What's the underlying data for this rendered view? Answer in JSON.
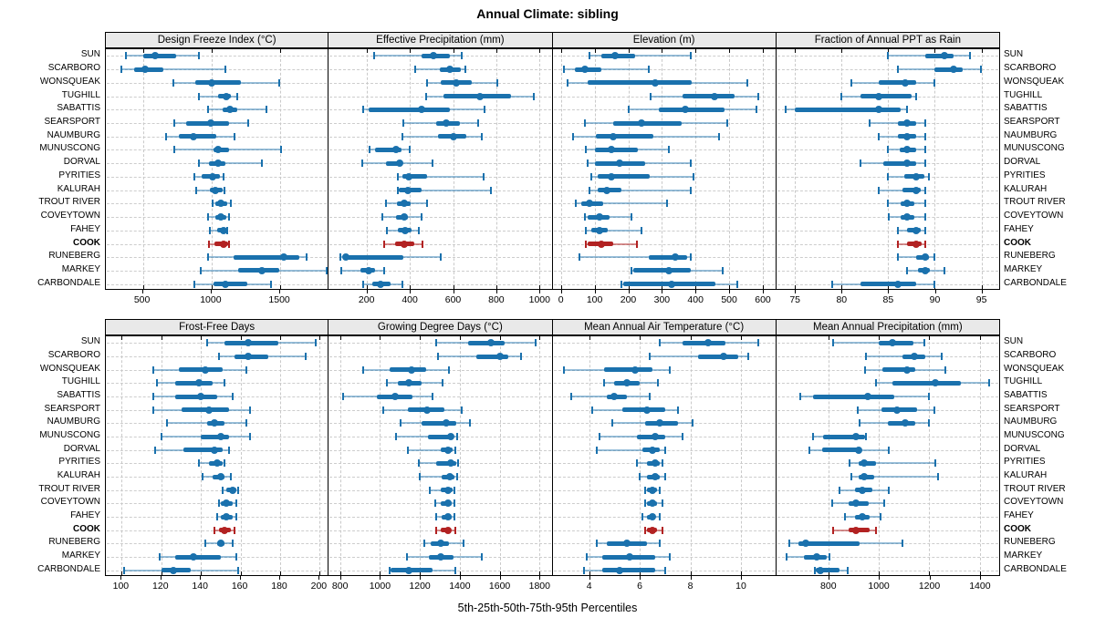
{
  "title": "Annual Climate: sibling",
  "footer": "5th-25th-50th-75th-95th Percentiles",
  "colors": {
    "blue": "#1a71ad",
    "blue_faint": "rgba(26,113,173,0.45)",
    "red": "#b22222",
    "red_faint": "rgba(178,34,34,0.5)",
    "strip_bg": "#e9e9e9",
    "grid": "#cdcdcd",
    "border": "#000000"
  },
  "chart_data": {
    "type": "dot-whisker-trellis",
    "percentiles": [
      5,
      25,
      50,
      75,
      95
    ],
    "legend_note": "5th-25th-50th-75th-95th Percentiles",
    "highlight_station": "COOK",
    "stations": [
      "SUN",
      "SCARBORO",
      "WONSQUEAK",
      "TUGHILL",
      "SABATTIS",
      "SEARSPORT",
      "NAUMBURG",
      "MUNUSCONG",
      "DORVAL",
      "PYRITIES",
      "KALURAH",
      "TROUT RIVER",
      "COVEYTOWN",
      "FAHEY",
      "COOK",
      "RUNEBERG",
      "MARKEY",
      "CARBONDALE"
    ],
    "panels": [
      {
        "label": "Design Freeze Index (°C)",
        "ticks": [
          500,
          1000,
          1500
        ],
        "range": [
          230,
          1860
        ],
        "values": [
          [
            375,
            500,
            590,
            745,
            910
          ],
          [
            340,
            435,
            515,
            650,
            1100
          ],
          [
            720,
            880,
            1000,
            1215,
            1490
          ],
          [
            905,
            1045,
            1105,
            1140,
            1185
          ],
          [
            975,
            1080,
            1135,
            1185,
            1400
          ],
          [
            725,
            815,
            995,
            1125,
            1265
          ],
          [
            665,
            760,
            865,
            1035,
            1165
          ],
          [
            725,
            1015,
            1045,
            1125,
            1505
          ],
          [
            905,
            980,
            1045,
            1100,
            1365
          ],
          [
            875,
            925,
            1005,
            1060,
            1085
          ],
          [
            885,
            985,
            1030,
            1080,
            1095
          ],
          [
            1005,
            1030,
            1070,
            1115,
            1140
          ],
          [
            975,
            1030,
            1065,
            1105,
            1125
          ],
          [
            985,
            1040,
            1085,
            1105,
            1115
          ],
          [
            980,
            1020,
            1090,
            1120,
            1130
          ],
          [
            975,
            1160,
            1525,
            1640,
            1695
          ],
          [
            920,
            1195,
            1365,
            1490,
            1835
          ],
          [
            875,
            1015,
            1100,
            1260,
            1435
          ]
        ]
      },
      {
        "label": "Effective Precipitation (mm)",
        "ticks": [
          200,
          400,
          600,
          800,
          1000
        ],
        "range": [
          25,
          1060
        ],
        "values": [
          [
            235,
            455,
            510,
            585,
            640
          ],
          [
            425,
            540,
            585,
            635,
            655
          ],
          [
            480,
            545,
            615,
            685,
            805
          ],
          [
            475,
            555,
            725,
            870,
            975
          ],
          [
            185,
            210,
            455,
            585,
            745
          ],
          [
            370,
            520,
            570,
            630,
            715
          ],
          [
            365,
            530,
            600,
            660,
            735
          ],
          [
            215,
            240,
            335,
            360,
            400
          ],
          [
            180,
            290,
            355,
            365,
            505
          ],
          [
            345,
            365,
            395,
            480,
            740
          ],
          [
            345,
            350,
            390,
            455,
            775
          ],
          [
            290,
            340,
            375,
            405,
            480
          ],
          [
            275,
            335,
            375,
            390,
            455
          ],
          [
            295,
            345,
            380,
            410,
            440
          ],
          [
            280,
            330,
            375,
            420,
            460
          ],
          [
            80,
            95,
            105,
            370,
            545
          ],
          [
            85,
            170,
            210,
            240,
            280
          ],
          [
            185,
            225,
            265,
            310,
            365
          ]
        ]
      },
      {
        "label": "Elevation (m)",
        "ticks": [
          0,
          100,
          200,
          300,
          400,
          500,
          600
        ],
        "range": [
          -25,
          640
        ],
        "values": [
          [
            85,
            120,
            160,
            220,
            385
          ],
          [
            10,
            40,
            70,
            120,
            260
          ],
          [
            20,
            80,
            280,
            390,
            555
          ],
          [
            265,
            360,
            455,
            515,
            585
          ],
          [
            200,
            290,
            370,
            485,
            580
          ],
          [
            70,
            155,
            240,
            360,
            495
          ],
          [
            35,
            105,
            155,
            275,
            470
          ],
          [
            75,
            100,
            150,
            230,
            320
          ],
          [
            80,
            100,
            175,
            250,
            385
          ],
          [
            90,
            110,
            150,
            265,
            395
          ],
          [
            85,
            110,
            135,
            180,
            385
          ],
          [
            45,
            60,
            85,
            125,
            315
          ],
          [
            70,
            80,
            115,
            145,
            210
          ],
          [
            75,
            90,
            115,
            140,
            240
          ],
          [
            75,
            80,
            120,
            155,
            225
          ],
          [
            55,
            260,
            340,
            375,
            385
          ],
          [
            210,
            215,
            320,
            385,
            480
          ],
          [
            180,
            185,
            330,
            460,
            525
          ]
        ]
      },
      {
        "label": "Fraction of Annual PPT as Rain",
        "ticks": [
          75,
          80,
          85,
          90,
          95
        ],
        "range": [
          73,
          97
        ],
        "values": [
          [
            85,
            89,
            91,
            92,
            93.8
          ],
          [
            86,
            90,
            92,
            93,
            94.9
          ],
          [
            81,
            84,
            86.8,
            88,
            90
          ],
          [
            80,
            82,
            84,
            87.5,
            88
          ],
          [
            74,
            75,
            84,
            86.3,
            87
          ],
          [
            83,
            86,
            87,
            88,
            89
          ],
          [
            84,
            86,
            87,
            88,
            89
          ],
          [
            85,
            86.2,
            87,
            88,
            89
          ],
          [
            82,
            84.5,
            87,
            88,
            89
          ],
          [
            85,
            86.7,
            88,
            88.9,
            89.4
          ],
          [
            84,
            86.5,
            88,
            88.5,
            89
          ],
          [
            85,
            86.3,
            87,
            87.8,
            89
          ],
          [
            85.1,
            86.3,
            87,
            87.8,
            89
          ],
          [
            86,
            87,
            88,
            88.5,
            89
          ],
          [
            86,
            87,
            88,
            88.6,
            89
          ],
          [
            86,
            88,
            89,
            89.4,
            90
          ],
          [
            87,
            88.2,
            89,
            89.5,
            91
          ],
          [
            79,
            82,
            86,
            88,
            90
          ]
        ]
      },
      {
        "label": "Frost-Free Days",
        "ticks": [
          100,
          120,
          140,
          160,
          180,
          200
        ],
        "range": [
          92,
          205
        ],
        "values": [
          [
            143,
            152,
            164,
            179,
            198
          ],
          [
            149,
            157,
            164,
            174,
            193
          ],
          [
            116,
            129,
            142,
            151,
            163
          ],
          [
            118,
            127,
            139,
            146,
            152
          ],
          [
            116,
            127,
            140,
            148,
            156
          ],
          [
            116,
            130,
            144,
            154,
            165
          ],
          [
            123,
            143,
            147,
            152,
            163
          ],
          [
            120,
            140,
            150,
            154,
            165
          ],
          [
            117,
            131,
            147,
            151,
            154
          ],
          [
            139,
            144,
            148,
            151,
            152
          ],
          [
            141,
            146,
            150,
            152,
            155
          ],
          [
            151,
            153,
            156,
            158,
            159
          ],
          [
            149,
            150,
            153,
            156,
            158
          ],
          [
            148,
            150,
            153,
            156,
            158
          ],
          [
            147,
            149,
            152,
            155,
            157
          ],
          [
            142,
            148,
            150,
            152,
            156
          ],
          [
            119,
            127,
            136,
            150,
            158
          ],
          [
            101,
            120,
            126,
            135,
            159
          ]
        ]
      },
      {
        "label": "Growing Degree Days (°C)",
        "ticks": [
          800,
          1000,
          1200,
          1400,
          1600,
          1800
        ],
        "range": [
          743,
          1865
        ],
        "values": [
          [
            1280,
            1440,
            1555,
            1625,
            1780
          ],
          [
            1290,
            1485,
            1600,
            1645,
            1705
          ],
          [
            915,
            1050,
            1160,
            1230,
            1345
          ],
          [
            1035,
            1090,
            1145,
            1210,
            1315
          ],
          [
            815,
            985,
            1075,
            1165,
            1265
          ],
          [
            1015,
            1140,
            1235,
            1325,
            1410
          ],
          [
            1105,
            1210,
            1330,
            1380,
            1450
          ],
          [
            1080,
            1240,
            1355,
            1370,
            1385
          ],
          [
            1140,
            1305,
            1340,
            1365,
            1380
          ],
          [
            1195,
            1280,
            1355,
            1380,
            1390
          ],
          [
            1200,
            1310,
            1350,
            1375,
            1385
          ],
          [
            1250,
            1305,
            1340,
            1365,
            1375
          ],
          [
            1275,
            1305,
            1340,
            1360,
            1375
          ],
          [
            1280,
            1310,
            1340,
            1360,
            1375
          ],
          [
            1280,
            1305,
            1340,
            1355,
            1380
          ],
          [
            1220,
            1255,
            1305,
            1345,
            1420
          ],
          [
            1135,
            1245,
            1305,
            1370,
            1510
          ],
          [
            1050,
            1055,
            1145,
            1265,
            1380
          ]
        ]
      },
      {
        "label": "Mean Annual Air Temperature (°C)",
        "ticks": [
          4,
          6,
          8,
          10
        ],
        "range": [
          2.55,
          11.4
        ],
        "values": [
          [
            6.8,
            7.7,
            8.7,
            9.4,
            10.7
          ],
          [
            6.4,
            8.3,
            9.3,
            9.9,
            10.3
          ],
          [
            3.0,
            4.6,
            5.8,
            6.5,
            7.2
          ],
          [
            4.6,
            5.0,
            5.5,
            6.0,
            6.7
          ],
          [
            3.3,
            4.7,
            5.0,
            5.5,
            6.4
          ],
          [
            4.1,
            5.3,
            6.3,
            7.0,
            7.5
          ],
          [
            4.9,
            6.2,
            6.8,
            7.5,
            8.1
          ],
          [
            4.4,
            5.9,
            6.6,
            7.0,
            7.7
          ],
          [
            4.3,
            6.1,
            6.5,
            6.8,
            7.0
          ],
          [
            5.9,
            6.3,
            6.6,
            6.8,
            6.9
          ],
          [
            6.0,
            6.3,
            6.6,
            6.8,
            7.0
          ],
          [
            6.2,
            6.3,
            6.5,
            6.7,
            6.8
          ],
          [
            6.2,
            6.3,
            6.5,
            6.7,
            6.9
          ],
          [
            6.1,
            6.3,
            6.5,
            6.6,
            6.8
          ],
          [
            6.2,
            6.3,
            6.5,
            6.7,
            6.9
          ],
          [
            4.3,
            4.7,
            5.5,
            6.3,
            6.8
          ],
          [
            3.9,
            4.5,
            5.6,
            6.6,
            7.2
          ],
          [
            3.8,
            4.5,
            5.2,
            6.6,
            7.0
          ]
        ]
      },
      {
        "label": "Mean Annual Precipitation (mm)",
        "ticks": [
          600,
          800,
          1000,
          1200,
          1400
        ],
        "range": [
          594,
          1480
        ],
        "values": [
          [
            820,
            1000,
            1055,
            1135,
            1180
          ],
          [
            950,
            1095,
            1140,
            1185,
            1250
          ],
          [
            945,
            1015,
            1110,
            1145,
            1265
          ],
          [
            990,
            1055,
            1225,
            1325,
            1435
          ],
          [
            690,
            740,
            955,
            1060,
            1200
          ],
          [
            915,
            1010,
            1070,
            1150,
            1220
          ],
          [
            925,
            1035,
            1105,
            1145,
            1200
          ],
          [
            740,
            780,
            910,
            945,
            950
          ],
          [
            725,
            775,
            920,
            930,
            1040
          ],
          [
            885,
            920,
            940,
            990,
            1225
          ],
          [
            890,
            920,
            940,
            980,
            1235
          ],
          [
            845,
            905,
            935,
            975,
            1040
          ],
          [
            815,
            880,
            910,
            960,
            1020
          ],
          [
            865,
            905,
            935,
            965,
            1005
          ],
          [
            820,
            880,
            910,
            965,
            990
          ],
          [
            645,
            680,
            710,
            925,
            1095
          ],
          [
            635,
            705,
            755,
            795,
            805
          ],
          [
            745,
            750,
            770,
            845,
            875
          ]
        ]
      }
    ]
  }
}
